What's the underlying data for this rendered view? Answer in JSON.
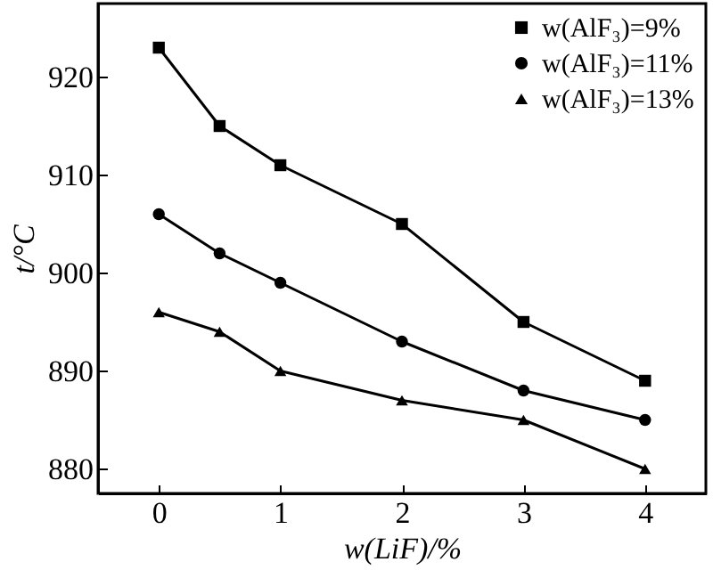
{
  "chart_data": {
    "type": "line",
    "xlabel": "w(LiF)/%",
    "ylabel": "t/°C",
    "x": [
      0,
      0.5,
      1,
      2,
      3,
      4
    ],
    "series": [
      {
        "name": "w(AlF₃)=9%",
        "color": "#000000",
        "marker": "square",
        "values": [
          923,
          915,
          911,
          905,
          895,
          889
        ]
      },
      {
        "name": "w(AlF₃)=11%",
        "color": "#000000",
        "marker": "circle",
        "values": [
          906,
          902,
          899,
          893,
          888,
          885
        ]
      },
      {
        "name": "w(AlF₃)=13%",
        "color": "#000000",
        "marker": "triangle",
        "values": [
          896,
          894,
          890,
          887,
          885,
          880
        ]
      }
    ],
    "xlim": [
      -0.5,
      4.5
    ],
    "xticks": [
      0,
      1,
      2,
      3,
      4
    ],
    "ylim": [
      877.5,
      927.5
    ],
    "yticks": [
      880,
      890,
      900,
      910,
      920
    ],
    "grid": false,
    "legend": "top right",
    "line_style": "solid"
  }
}
